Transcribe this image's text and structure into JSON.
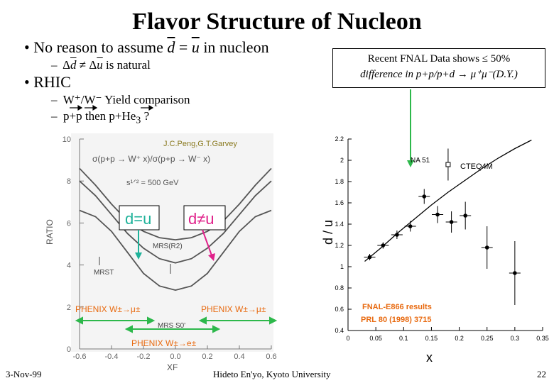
{
  "slide": {
    "title": "Flavor Structure of Nucleon",
    "bullet1_pre": "No reason to assume ",
    "bullet1_d": "d",
    "bullet1_eq": " = ",
    "bullet1_u": "u",
    "bullet1_post": " in nucleon",
    "sub1_pre": "Δ",
    "sub1_d": "d",
    "sub1_neq": " ≠ Δ",
    "sub1_u": "u",
    "sub1_post": " is natural",
    "bullet2": "RHIC",
    "sub2": "W⁺/W⁻ Yield comparison",
    "sub3_a": "p",
    "sub3_b": "+",
    "sub3_c": "p",
    "sub3_d": " then ",
    "sub3_e": "p",
    "sub3_f": "+He",
    "sub3_g": "3",
    "sub3_h": " ?",
    "bullet_dash": "–",
    "bullet_dot": "•",
    "callout_line1": "Recent FNAL Data shows ≤ 50%",
    "callout_line2": "difference in p+p/p+d → μ⁺μ⁻(D.Y.)",
    "footer_left": "3-Nov-99",
    "footer_center": "Hideto En'yo, Kyoto University",
    "footer_right": "22"
  },
  "left_figure": {
    "credit": "J.C.Peng,G.T.Garvey",
    "formula": "σ(p+p → W⁺ x)/σ(p+p → W⁻ x)",
    "energy": "s¹ᐟ² = 500 GeV",
    "label_eq": "d=u",
    "label_neq": "d≠u",
    "label_mrs": "MRS(R2)",
    "label_mrst": "MRST",
    "label_mrss0": "MRS S0'",
    "phenix1": "PHENIX W±→μ±",
    "phenix2": "PHENIX W±→μ±",
    "phenix3": "PHENIX W±→e±",
    "ylabel": "RATIO",
    "xlabel": "XF",
    "colors": {
      "eq": "#1fb29a",
      "neq": "#e0218a",
      "phenix": "#e86a10",
      "arrow_green": "#2db84b"
    }
  },
  "chart_data": [
    {
      "type": "line",
      "title": "",
      "xlabel": "XF",
      "ylabel": "RATIO",
      "xlim": [
        -0.6,
        0.6
      ],
      "ylim": [
        0,
        10
      ],
      "x_ticks": [
        "-0.6",
        "-0.4",
        "-0.2",
        "0.0",
        "0.2",
        "0.4",
        "0.6"
      ],
      "y_ticks": [
        "0",
        "2",
        "4",
        "6",
        "8",
        "10"
      ],
      "series": [
        {
          "name": "d≠u",
          "x": [
            -0.6,
            -0.5,
            -0.4,
            -0.3,
            -0.2,
            -0.1,
            0,
            0.1,
            0.2,
            0.3,
            0.4,
            0.5,
            0.6
          ],
          "values": [
            8.6,
            7.8,
            6.9,
            6.1,
            5.6,
            5.3,
            5.2,
            5.3,
            5.6,
            6.1,
            6.9,
            7.8,
            8.6
          ]
        },
        {
          "name": "MRST",
          "x": [
            -0.6,
            -0.5,
            -0.4,
            -0.3,
            -0.2,
            -0.1,
            0,
            0.1,
            0.2,
            0.3,
            0.4,
            0.5,
            0.6
          ],
          "values": [
            8.0,
            7.3,
            6.4,
            5.5,
            4.8,
            4.3,
            4.1,
            4.3,
            4.8,
            5.5,
            6.4,
            7.3,
            8.0
          ]
        },
        {
          "name": "d=u",
          "x": [
            -0.6,
            -0.5,
            -0.4,
            -0.3,
            -0.2,
            -0.1,
            0,
            0.1,
            0.2,
            0.3,
            0.4,
            0.5,
            0.6
          ],
          "values": [
            6.6,
            6.3,
            5.6,
            4.6,
            3.6,
            3.0,
            2.8,
            3.0,
            3.6,
            4.6,
            5.6,
            6.3,
            6.6
          ]
        }
      ]
    },
    {
      "type": "scatter",
      "title": "",
      "xlabel": "x",
      "ylabel": "d / u",
      "xlim": [
        0,
        0.35
      ],
      "ylim": [
        0.4,
        2.2
      ],
      "x_ticks": [
        "0",
        "0.05",
        "0.1",
        "0.15",
        "0.2",
        "0.25",
        "0.3",
        "0.35"
      ],
      "y_ticks": [
        "0.4",
        "0.6",
        "0.8",
        "1",
        "1.2",
        "1.4",
        "1.6",
        "1.8",
        "2",
        "2.2"
      ],
      "annotations": [
        "NA 51",
        "CTEQ4M",
        "FNAL-E866 results",
        "PRL 80 (1998) 3715"
      ],
      "series": [
        {
          "name": "E866",
          "x": [
            0.039,
            0.063,
            0.088,
            0.112,
            0.137,
            0.161,
            0.186,
            0.211,
            0.25,
            0.3
          ],
          "values": [
            1.09,
            1.2,
            1.3,
            1.38,
            1.66,
            1.49,
            1.42,
            1.48,
            1.18,
            0.94
          ],
          "errors": [
            0.03,
            0.03,
            0.04,
            0.05,
            0.07,
            0.08,
            0.1,
            0.13,
            0.2,
            0.3
          ]
        },
        {
          "name": "NA 51",
          "x": [
            0.18
          ],
          "values": [
            1.96
          ],
          "errors": [
            0.15
          ]
        },
        {
          "name": "CTEQ4M",
          "x": [
            0.03,
            0.06,
            0.09,
            0.12,
            0.15,
            0.18,
            0.21,
            0.24,
            0.27,
            0.3,
            0.33
          ],
          "values": [
            1.05,
            1.18,
            1.32,
            1.45,
            1.58,
            1.7,
            1.81,
            1.92,
            2.02,
            2.11,
            2.19
          ]
        }
      ]
    }
  ]
}
